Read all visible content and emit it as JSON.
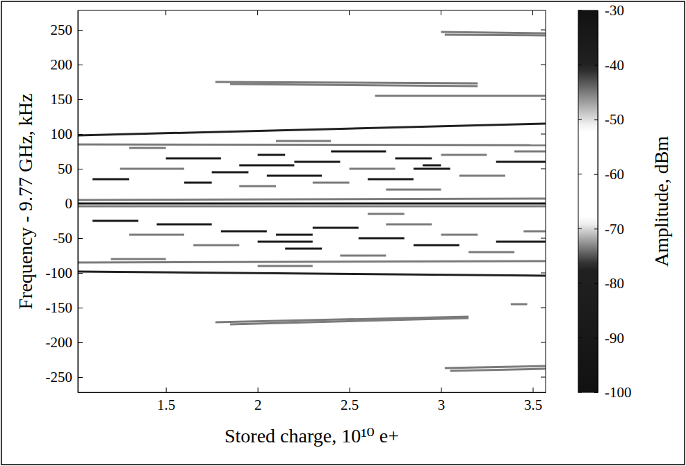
{
  "chart_data": {
    "type": "heatmap",
    "xlabel": "Stored charge, 10¹⁰ e+",
    "ylabel": "Frequency - 9.77 GHz, kHz",
    "xlim": [
      1.02,
      3.57
    ],
    "xticks": [
      1.5,
      2,
      2.5,
      3,
      3.5
    ],
    "ylim": [
      -272,
      278
    ],
    "yticks": [
      -250,
      -200,
      -150,
      -100,
      -50,
      0,
      50,
      100,
      150,
      200,
      250
    ],
    "colorbar": {
      "label": "Amplitude, dBm",
      "range": [
        -100,
        -30
      ],
      "ticks": [
        -100,
        -90,
        -80,
        -70,
        -60,
        -50,
        -40,
        -30
      ]
    },
    "streaks": [
      {
        "x": [
          1.02,
          3.57
        ],
        "y": [
          0,
          0
        ],
        "amplitude": -35
      },
      {
        "x": [
          1.02,
          3.57
        ],
        "y": [
          5,
          7
        ],
        "amplitude": -45
      },
      {
        "x": [
          1.02,
          3.57
        ],
        "y": [
          -4,
          -4
        ],
        "amplitude": -45
      },
      {
        "x": [
          1.02,
          3.57
        ],
        "y": [
          98,
          115
        ],
        "amplitude": -40
      },
      {
        "x": [
          1.02,
          3.57
        ],
        "y": [
          -98,
          -104
        ],
        "amplitude": -40
      },
      {
        "x": [
          1.02,
          3.57
        ],
        "y": [
          85,
          84
        ],
        "amplitude": -45
      },
      {
        "x": [
          1.02,
          3.57
        ],
        "y": [
          -85,
          -83
        ],
        "amplitude": -45
      },
      {
        "x": [
          1.77,
          3.2
        ],
        "y": [
          175,
          173
        ],
        "amplitude": -45
      },
      {
        "x": [
          1.85,
          3.2
        ],
        "y": [
          172,
          169
        ],
        "amplitude": -45
      },
      {
        "x": [
          1.77,
          3.15
        ],
        "y": [
          -171,
          -163
        ],
        "amplitude": -45
      },
      {
        "x": [
          1.85,
          3.15
        ],
        "y": [
          -174,
          -165
        ],
        "amplitude": -45
      },
      {
        "x": [
          3.0,
          3.57
        ],
        "y": [
          247,
          245
        ],
        "amplitude": -45
      },
      {
        "x": [
          3.02,
          3.57
        ],
        "y": [
          243,
          242
        ],
        "amplitude": -45
      },
      {
        "x": [
          3.02,
          3.57
        ],
        "y": [
          -237,
          -234
        ],
        "amplitude": -45
      },
      {
        "x": [
          3.05,
          3.57
        ],
        "y": [
          -241,
          -238
        ],
        "amplitude": -45
      },
      {
        "x": [
          2.64,
          3.57
        ],
        "y": [
          155,
          155
        ],
        "amplitude": -45
      },
      {
        "x": [
          3.38,
          3.47
        ],
        "y": [
          -145,
          -145
        ],
        "amplitude": -45
      },
      {
        "x": [
          1.1,
          1.3
        ],
        "y": [
          35,
          35
        ],
        "amplitude": -35
      },
      {
        "x": [
          1.25,
          1.6
        ],
        "y": [
          50,
          50
        ],
        "amplitude": -45
      },
      {
        "x": [
          1.5,
          1.8
        ],
        "y": [
          65,
          65
        ],
        "amplitude": -35
      },
      {
        "x": [
          1.6,
          1.75
        ],
        "y": [
          30,
          30
        ],
        "amplitude": -35
      },
      {
        "x": [
          1.75,
          1.95
        ],
        "y": [
          45,
          45
        ],
        "amplitude": -35
      },
      {
        "x": [
          1.9,
          2.2
        ],
        "y": [
          55,
          55
        ],
        "amplitude": -35
      },
      {
        "x": [
          2.0,
          2.15
        ],
        "y": [
          70,
          70
        ],
        "amplitude": -35
      },
      {
        "x": [
          2.05,
          2.35
        ],
        "y": [
          40,
          40
        ],
        "amplitude": -35
      },
      {
        "x": [
          2.2,
          2.45
        ],
        "y": [
          60,
          60
        ],
        "amplitude": -35
      },
      {
        "x": [
          2.3,
          2.5
        ],
        "y": [
          30,
          30
        ],
        "amplitude": -45
      },
      {
        "x": [
          2.4,
          2.7
        ],
        "y": [
          75,
          75
        ],
        "amplitude": -35
      },
      {
        "x": [
          2.5,
          2.75
        ],
        "y": [
          50,
          50
        ],
        "amplitude": -45
      },
      {
        "x": [
          2.6,
          2.85
        ],
        "y": [
          35,
          35
        ],
        "amplitude": -35
      },
      {
        "x": [
          2.75,
          2.95
        ],
        "y": [
          65,
          65
        ],
        "amplitude": -35
      },
      {
        "x": [
          2.85,
          3.05
        ],
        "y": [
          50,
          50
        ],
        "amplitude": -35
      },
      {
        "x": [
          2.9,
          3.0
        ],
        "y": [
          55,
          55
        ],
        "amplitude": -35
      },
      {
        "x": [
          3.0,
          3.25
        ],
        "y": [
          70,
          70
        ],
        "amplitude": -45
      },
      {
        "x": [
          3.1,
          3.35
        ],
        "y": [
          40,
          40
        ],
        "amplitude": -45
      },
      {
        "x": [
          3.3,
          3.57
        ],
        "y": [
          60,
          60
        ],
        "amplitude": -35
      },
      {
        "x": [
          3.4,
          3.57
        ],
        "y": [
          75,
          75
        ],
        "amplitude": -45
      },
      {
        "x": [
          1.3,
          1.5
        ],
        "y": [
          80,
          80
        ],
        "amplitude": -45
      },
      {
        "x": [
          2.1,
          2.4
        ],
        "y": [
          90,
          90
        ],
        "amplitude": -45
      },
      {
        "x": [
          2.7,
          3.0
        ],
        "y": [
          20,
          20
        ],
        "amplitude": -45
      },
      {
        "x": [
          1.9,
          2.1
        ],
        "y": [
          25,
          25
        ],
        "amplitude": -45
      },
      {
        "x": [
          1.1,
          1.35
        ],
        "y": [
          -25,
          -25
        ],
        "amplitude": -35
      },
      {
        "x": [
          1.3,
          1.6
        ],
        "y": [
          -45,
          -45
        ],
        "amplitude": -45
      },
      {
        "x": [
          1.45,
          1.75
        ],
        "y": [
          -30,
          -30
        ],
        "amplitude": -35
      },
      {
        "x": [
          1.65,
          1.9
        ],
        "y": [
          -60,
          -60
        ],
        "amplitude": -45
      },
      {
        "x": [
          1.8,
          2.05
        ],
        "y": [
          -40,
          -40
        ],
        "amplitude": -35
      },
      {
        "x": [
          2.0,
          2.3
        ],
        "y": [
          -55,
          -55
        ],
        "amplitude": -35
      },
      {
        "x": [
          2.1,
          2.3
        ],
        "y": [
          -45,
          -45
        ],
        "amplitude": -35
      },
      {
        "x": [
          2.15,
          2.35
        ],
        "y": [
          -65,
          -65
        ],
        "amplitude": -35
      },
      {
        "x": [
          2.3,
          2.55
        ],
        "y": [
          -35,
          -35
        ],
        "amplitude": -35
      },
      {
        "x": [
          2.45,
          2.7
        ],
        "y": [
          -75,
          -75
        ],
        "amplitude": -45
      },
      {
        "x": [
          2.55,
          2.8
        ],
        "y": [
          -50,
          -50
        ],
        "amplitude": -35
      },
      {
        "x": [
          2.7,
          2.95
        ],
        "y": [
          -30,
          -30
        ],
        "amplitude": -45
      },
      {
        "x": [
          2.85,
          3.1
        ],
        "y": [
          -60,
          -60
        ],
        "amplitude": -35
      },
      {
        "x": [
          3.0,
          3.2
        ],
        "y": [
          -45,
          -45
        ],
        "amplitude": -45
      },
      {
        "x": [
          3.15,
          3.4
        ],
        "y": [
          -70,
          -70
        ],
        "amplitude": -45
      },
      {
        "x": [
          3.3,
          3.57
        ],
        "y": [
          -55,
          -55
        ],
        "amplitude": -35
      },
      {
        "x": [
          3.45,
          3.57
        ],
        "y": [
          -40,
          -40
        ],
        "amplitude": -45
      },
      {
        "x": [
          1.2,
          1.5
        ],
        "y": [
          -80,
          -80
        ],
        "amplitude": -45
      },
      {
        "x": [
          2.0,
          2.3
        ],
        "y": [
          -90,
          -90
        ],
        "amplitude": -45
      },
      {
        "x": [
          2.6,
          2.8
        ],
        "y": [
          -15,
          -15
        ],
        "amplitude": -45
      }
    ]
  }
}
